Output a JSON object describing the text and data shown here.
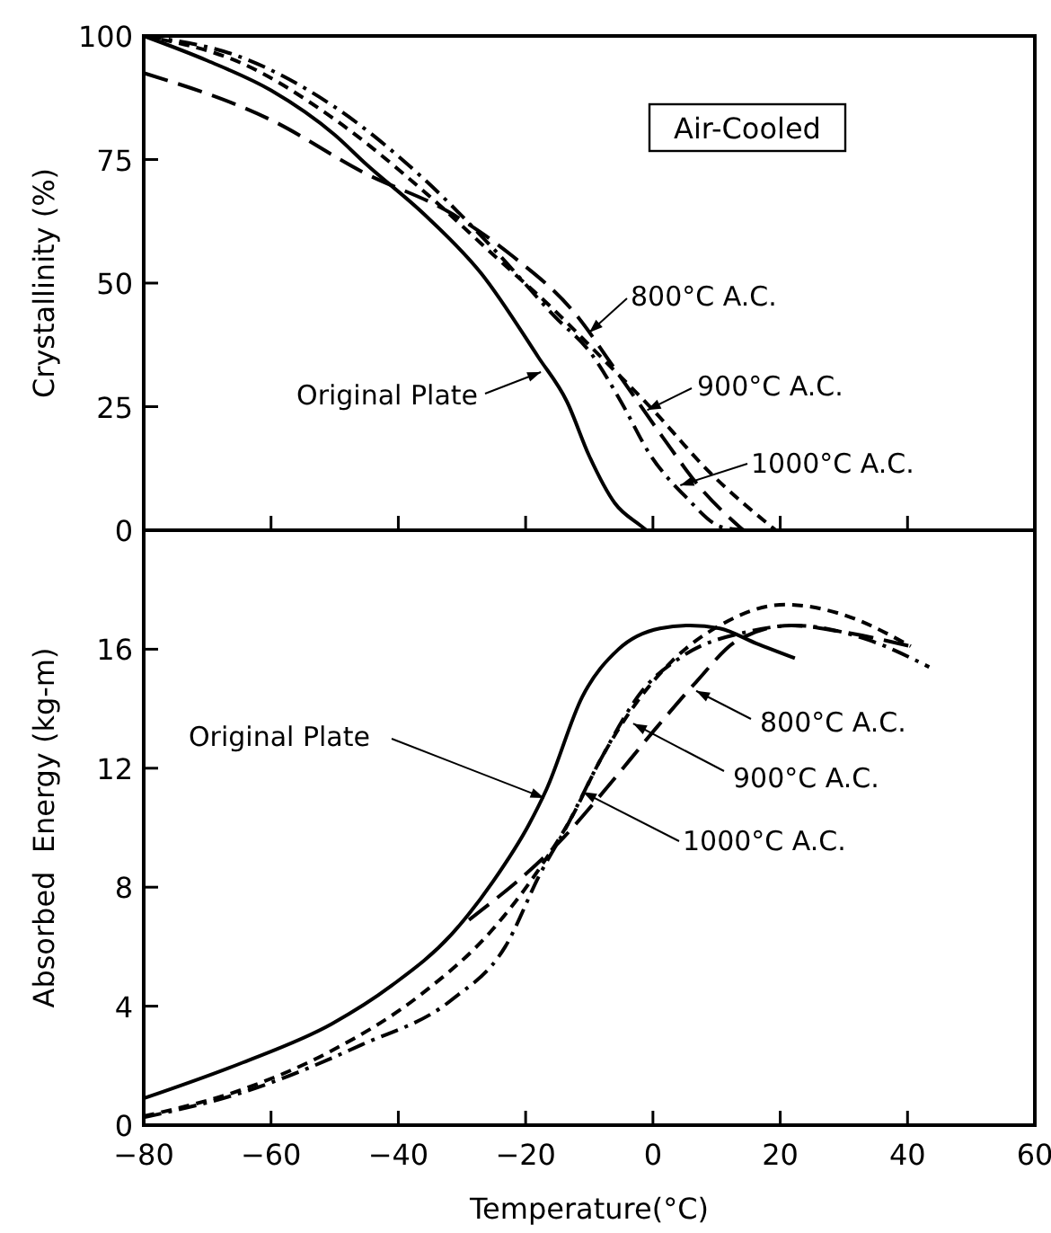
{
  "chart_data": [
    {
      "type": "line",
      "ylabel": "Crystallinity (%)",
      "xlim": [
        -80,
        60
      ],
      "xticks": [
        -80,
        -60,
        -40,
        -20,
        0,
        20,
        40,
        60
      ],
      "ylim": [
        0,
        100
      ],
      "yticks": [
        0,
        25,
        50,
        75,
        100
      ],
      "tick_labels": "y",
      "grid": false,
      "annotations": [
        "Air-Cooled",
        {
          "text": "Original Plate",
          "x": -17.6,
          "y": 32
        },
        {
          "text": "800°C A.C.",
          "x": -10,
          "y": 40
        },
        {
          "text": "900°C A.C.",
          "x": -0.9,
          "y": 24.3
        },
        {
          "text": "1000°C A.C.",
          "x": 4.3,
          "y": 9.1
        }
      ],
      "series": [
        {
          "color": "#000000",
          "line_style": "solid",
          "x": [
            -80,
            -70,
            -60,
            -50,
            -45,
            -36,
            -27,
            -18,
            -13.5,
            -10,
            -6,
            -2,
            -1
          ],
          "values": [
            100,
            95,
            89,
            80,
            74,
            64,
            52,
            35,
            26,
            15,
            5.5,
            1,
            0
          ]
        },
        {
          "color": "#000000",
          "line_style": "longdash",
          "x": [
            -80,
            -60,
            -45.5,
            -31.4,
            -22,
            -12.6,
            -5.1,
            1.5,
            7.1,
            14.2
          ],
          "values": [
            92.5,
            83,
            72.4,
            63.9,
            55.4,
            44.4,
            31,
            18.9,
            9.1,
            0
          ]
        },
        {
          "color": "#000000",
          "line_style": "dashed",
          "x": [
            -80,
            -64.3,
            -50.2,
            -36.1,
            -24.8,
            -15.4,
            -7.9,
            -0.4,
            9,
            19.3
          ],
          "values": [
            100,
            94.3,
            83.3,
            68.7,
            55.4,
            44.4,
            34.7,
            24.9,
            11.6,
            0
          ]
        },
        {
          "color": "#000000",
          "line_style": "dashdot",
          "x": [
            -80,
            -64.3,
            -50.2,
            -36.1,
            -24.8,
            -15.4,
            -9.8,
            -5.1,
            -0.4,
            5.2,
            10.9,
            14.6
          ],
          "values": [
            100,
            95.5,
            85.8,
            71.2,
            56.6,
            43.2,
            35.9,
            26.2,
            15.2,
            6.7,
            0.6,
            0
          ]
        }
      ]
    },
    {
      "type": "line",
      "xlabel": "Temperature(°C)",
      "ylabel": "Absorbed  Energy (kg-m)",
      "xlim": [
        -80,
        60
      ],
      "xticks": [
        -80,
        -60,
        -40,
        -20,
        0,
        20,
        40,
        60
      ],
      "ylim": [
        0,
        20
      ],
      "yticks": [
        0,
        4,
        8,
        12,
        16
      ],
      "grid": false,
      "annotations": [
        {
          "text": "Original Plate",
          "x": -17.1,
          "y": 11
        },
        {
          "text": "800°C A.C.",
          "x": 6.8,
          "y": 14.6
        },
        {
          "text": "900°C A.C.",
          "x": -3.1,
          "y": 13.5
        },
        {
          "text": "1000°C A.C.",
          "x": -11,
          "y": 11.2
        }
      ],
      "series": [
        {
          "color": "#000000",
          "line_style": "solid",
          "x": [
            -80,
            -64.5,
            -50.5,
            -41,
            -31.7,
            -25.1,
            -19.5,
            -16.7,
            -11.1,
            -5.4,
            1.1,
            5.8,
            10.5,
            16.2,
            22.3
          ],
          "values": [
            0.9,
            2.1,
            3.4,
            4.7,
            6.4,
            8.2,
            10.1,
            11.3,
            14.4,
            16,
            16.7,
            16.8,
            16.7,
            16.2,
            15.7
          ]
        },
        {
          "color": "#000000",
          "line_style": "longdash",
          "x": [
            -28.9,
            -13.9,
            -8.2,
            1.1,
            6.8,
            13.3,
            21.8,
            29.3,
            40.5
          ],
          "values": [
            6.9,
            9.7,
            11.1,
            13.5,
            14.9,
            16.3,
            16.8,
            16.6,
            16.1
          ]
        },
        {
          "color": "#000000",
          "line_style": "dashed",
          "x": [
            -80,
            -64.5,
            -50.5,
            -36.4,
            -25.1,
            -17.6,
            -12.9,
            -8.2,
            -2.6,
            3,
            10.5,
            20.8,
            29.3,
            40.5
          ],
          "values": [
            0.3,
            1.2,
            2.5,
            4.4,
            6.6,
            8.7,
            10.3,
            12.3,
            14.2,
            15.6,
            16.8,
            17.5,
            17.2,
            16.1
          ]
        },
        {
          "color": "#000000",
          "line_style": "dashdot",
          "x": [
            -80,
            -64.5,
            -45.8,
            -31.7,
            -23.2,
            -17.6,
            -13.9,
            -8.2,
            -1.7,
            4.9,
            15.2,
            22.3,
            34,
            43.4
          ],
          "values": [
            0.26,
            1.1,
            2.7,
            4.2,
            6,
            8.5,
            9.9,
            12.3,
            14.6,
            15.8,
            16.6,
            16.8,
            16.3,
            15.4
          ]
        }
      ]
    }
  ]
}
